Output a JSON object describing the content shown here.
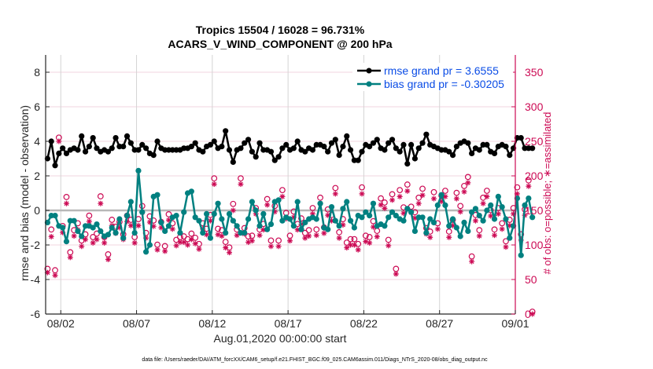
{
  "chart_data": {
    "type": "line",
    "title": [
      "Tropics 15504 / 16028 = 96.731%",
      "ACARS_V_WIND_COMPONENT @ 200 hPa"
    ],
    "xlabel": "Aug.01,2020 00:00:00 start",
    "ylabel": "rmse and bias (model - observation)",
    "y2label": "# of obs: o=possible; ∗=assimilated",
    "footnote": "data file: /Users/raeder/DAI/ATM_forcXX/CAM6_setup/f.e21.FHIST_BGC.f09_025.CAM6assim.011/Diags_NTrS_2020-08/obs_diag_output.nc",
    "xlim_days": [
      0,
      31
    ],
    "x_ticks": [
      {
        "day": 1,
        "label": "08/02"
      },
      {
        "day": 6,
        "label": "08/07"
      },
      {
        "day": 11,
        "label": "08/12"
      },
      {
        "day": 16,
        "label": "08/17"
      },
      {
        "day": 21,
        "label": "08/22"
      },
      {
        "day": 26,
        "label": "08/27"
      },
      {
        "day": 31,
        "label": "09/01"
      }
    ],
    "ylim": [
      -6,
      9
    ],
    "y_ticks": [
      -6,
      -4,
      -2,
      0,
      2,
      4,
      6,
      8
    ],
    "y2lim": [
      0,
      350
    ],
    "y2_ticks": [
      0,
      50,
      100,
      150,
      200,
      250,
      300,
      350
    ],
    "zero_line": 0,
    "x_step_days": 0.25,
    "legend": {
      "position": "top-right",
      "entries": [
        {
          "label": "rmse grand pr = 3.6555",
          "series": "rmse"
        },
        {
          "label": "bias grand pr = -0.30205",
          "series": "bias"
        }
      ]
    },
    "colors": {
      "rmse": "#000000",
      "bias": "#008080",
      "obs": "#cc0a54",
      "zero_line": "#b8b8b8",
      "grid_v": "#d4d4d4",
      "grid_h": "#f2d4df",
      "legend_text": "#0a4ce6"
    },
    "series": [
      {
        "name": "rmse",
        "axis": "left",
        "values": [
          3.0,
          4.0,
          2.6,
          3.3,
          3.6,
          3.3,
          3.5,
          3.6,
          3.5,
          4.3,
          3.4,
          3.7,
          4.2,
          3.6,
          3.4,
          3.5,
          3.4,
          3.6,
          4.2,
          3.7,
          3.7,
          4.3,
          3.9,
          3.5,
          3.5,
          3.8,
          3.6,
          3.3,
          3.2,
          4.0,
          3.6,
          3.5,
          3.5,
          3.5,
          3.5,
          3.5,
          3.6,
          3.6,
          3.7,
          3.9,
          3.5,
          3.4,
          3.7,
          3.8,
          4.0,
          3.6,
          3.7,
          4.6,
          3.5,
          2.8,
          3.5,
          3.6,
          3.9,
          4.1,
          3.4,
          3.1,
          3.9,
          3.5,
          3.5,
          3.4,
          2.9,
          3.1,
          3.6,
          3.8,
          3.5,
          3.6,
          4.0,
          3.5,
          3.4,
          3.6,
          3.5,
          3.8,
          3.8,
          3.7,
          3.4,
          3.9,
          4.1,
          3.2,
          3.7,
          4.3,
          3.5,
          2.9,
          2.9,
          3.4,
          3.8,
          3.7,
          3.9,
          4.1,
          3.6,
          3.5,
          3.9,
          4.1,
          3.6,
          3.4,
          3.8,
          2.7,
          3.8,
          3.0,
          3.6,
          3.9,
          4.4,
          3.8,
          3.7,
          3.6,
          3.5,
          3.5,
          3.4,
          3.2,
          3.7,
          3.9,
          4.0,
          3.9,
          3.3,
          3.6,
          3.5,
          3.8,
          3.8,
          3.4,
          3.3,
          3.7,
          3.8,
          3.7,
          3.2,
          3.6,
          4.2,
          4.2,
          3.6,
          3.6,
          3.6
        ]
      },
      {
        "name": "bias",
        "axis": "left",
        "values": [
          -0.7,
          -0.3,
          -0.3,
          -0.9,
          -1.0,
          -1.8,
          -0.6,
          -0.6,
          -1.2,
          -1.5,
          -0.9,
          -0.9,
          -1.0,
          -0.8,
          -1.2,
          -1.5,
          -1.4,
          -1.0,
          -1.3,
          -0.5,
          -1.6,
          -0.3,
          0.5,
          -1.3,
          2.3,
          -0.1,
          -2.4,
          -2.0,
          0.8,
          0.9,
          -0.7,
          -1.2,
          -0.9,
          -0.4,
          -0.3,
          -1.3,
          -0.1,
          1.0,
          1.1,
          -0.4,
          -0.6,
          -1.3,
          -0.2,
          -1.6,
          -0.2,
          0.4,
          -0.5,
          -1.3,
          -0.2,
          -0.6,
          -0.9,
          -1.3,
          -1.3,
          -0.5,
          0.5,
          0.0,
          -0.9,
          -0.2,
          -1.1,
          -0.8,
          0.5,
          0.6,
          -0.6,
          -0.4,
          -0.5,
          -0.9,
          0.5,
          -1.1,
          -0.7,
          -0.5,
          -0.4,
          -0.5,
          0.4,
          -1.0,
          -1.1,
          0.2,
          -0.6,
          -0.9,
          0.1,
          0.5,
          -0.6,
          -1.0,
          -0.3,
          -0.4,
          -0.1,
          -0.3,
          0.4,
          -0.9,
          -0.8,
          -0.9,
          -0.4,
          -0.1,
          -0.3,
          -0.5,
          -0.6,
          0.1,
          -0.1,
          -1.2,
          -0.4,
          -0.4,
          -1.3,
          -0.5,
          -0.7,
          0.3,
          0.9,
          0.3,
          -0.9,
          -0.5,
          -1.0,
          -1.5,
          -0.7,
          -1.2,
          -0.1,
          0.1,
          -0.3,
          -0.6,
          0.0,
          0.3,
          -0.5,
          0.8,
          0.2,
          -0.5,
          -1.6,
          -0.9,
          0.7,
          -2.6,
          0.3,
          0.7,
          -0.4
        ]
      },
      {
        "name": "obs_possible",
        "axis": "right",
        "values": [
          62,
          119,
          60,
          252,
          124,
          166,
          86,
          118,
          128,
          103,
          112,
          139,
          108,
          113,
          167,
          108,
          83,
          133,
          123,
          130,
          112,
          139,
          133,
          108,
          134,
          153,
          114,
          138,
          132,
          97,
          130,
          95,
          141,
          128,
          104,
          108,
          109,
          105,
          113,
          107,
          98,
          128,
          120,
          140,
          193,
          120,
          118,
          101,
          93,
          156,
          119,
          193,
          121,
          109,
          110,
          150,
          119,
          127,
          163,
          103,
          153,
          103,
          176,
          143,
          110,
          145,
          127,
          135,
          114,
          118,
          150,
          119,
          165,
          122,
          148,
          140,
          179,
          115,
          134,
          100,
          105,
          105,
          98,
          180,
          110,
          108,
          131,
          117,
          164,
          158,
          104,
          170,
          62,
          176,
          151,
          184,
          152,
          144,
          165,
          178,
          121,
          116,
          173,
          128,
          168,
          175,
          116,
          133,
          172,
          153,
          182,
          195,
          80,
          140,
          118,
          165,
          175,
          147,
          119,
          150,
          128,
          102,
          133,
          150,
          180,
          112,
          148,
          190,
          0
        ]
      },
      {
        "name": "obs_assimilated",
        "axis": "right",
        "values": [
          60,
          112,
          56,
          250,
          118,
          160,
          82,
          113,
          122,
          98,
          108,
          134,
          103,
          108,
          160,
          103,
          79,
          128,
          117,
          125,
          108,
          134,
          128,
          103,
          128,
          147,
          110,
          133,
          127,
          93,
          125,
          91,
          136,
          123,
          99,
          104,
          104,
          100,
          108,
          102,
          94,
          123,
          115,
          135,
          188,
          115,
          113,
          96,
          89,
          150,
          114,
          188,
          116,
          104,
          106,
          145,
          114,
          122,
          158,
          98,
          148,
          98,
          170,
          138,
          106,
          140,
          122,
          130,
          110,
          113,
          145,
          114,
          160,
          117,
          143,
          135,
          174,
          110,
          129,
          96,
          100,
          100,
          93,
          174,
          105,
          103,
          126,
          112,
          158,
          153,
          99,
          165,
          58,
          170,
          146,
          178,
          147,
          139,
          160,
          172,
          116,
          111,
          167,
          123,
          163,
          170,
          111,
          128,
          167,
          148,
          177,
          190,
          76,
          135,
          113,
          160,
          170,
          142,
          114,
          145,
          123,
          97,
          128,
          145,
          174,
          107,
          143,
          185,
          0
        ]
      }
    ]
  }
}
